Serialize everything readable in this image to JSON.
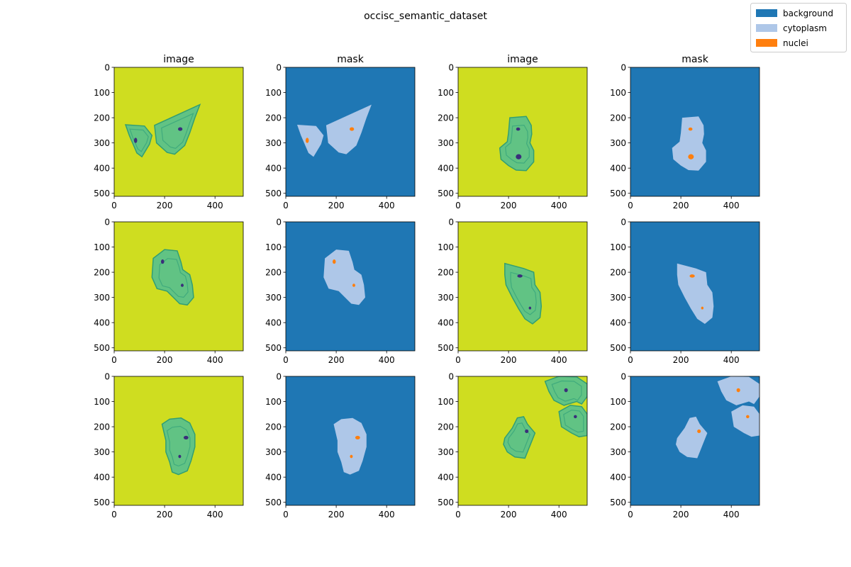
{
  "figure": {
    "title": "occisc_semantic_dataset"
  },
  "legend": {
    "placement": "top-right",
    "entries": [
      {
        "label": "background",
        "color": "#1f77b4"
      },
      {
        "label": "cytoplasm",
        "color": "#aec7e8"
      },
      {
        "label": "nuclei",
        "color": "#ff7f0e"
      }
    ]
  },
  "colors": {
    "image_bg": "#cfdd20",
    "cell_light": "#5cc28a",
    "cell_dark": "#2a9b78",
    "nucleus_image": "#3a2f7a",
    "mask_bg": "#1f77b4",
    "mask_cytoplasm": "#aec7e8",
    "mask_nuclei": "#ff7f0e"
  },
  "chart_data": {
    "type": "heatmap",
    "grid": false,
    "layout": "3 rows x 4 columns (image/mask pairs)",
    "column_titles": [
      "image",
      "mask",
      "image",
      "mask"
    ],
    "xlim": [
      0,
      512
    ],
    "ylim": [
      512,
      0
    ],
    "xticks": [
      0,
      200,
      400
    ],
    "yticks": [
      0,
      100,
      200,
      300,
      400,
      500
    ],
    "samples": [
      {
        "cells": [
          {
            "points": [
              [
                45,
                228
              ],
              [
                120,
                233
              ],
              [
                150,
                270
              ],
              [
                140,
                305
              ],
              [
                110,
                355
              ],
              [
                90,
                340
              ],
              [
                60,
                270
              ]
            ],
            "nuclei": [
              [
                85,
                290,
                8,
                13
              ]
            ]
          },
          {
            "points": [
              [
                160,
                230
              ],
              [
                340,
                148
              ],
              [
                320,
                200
              ],
              [
                300,
                260
              ],
              [
                280,
                310
              ],
              [
                240,
                345
              ],
              [
                210,
                338
              ],
              [
                168,
                300
              ]
            ],
            "nuclei": [
              [
                262,
                245,
                11,
                9
              ]
            ]
          }
        ]
      },
      {
        "cells": [
          {
            "points": [
              [
                205,
                200
              ],
              [
                270,
                195
              ],
              [
                290,
                230
              ],
              [
                292,
                265
              ],
              [
                285,
                300
              ],
              [
                300,
                330
              ],
              [
                300,
                375
              ],
              [
                270,
                410
              ],
              [
                230,
                408
              ],
              [
                200,
                390
              ],
              [
                170,
                365
              ],
              [
                165,
                320
              ],
              [
                195,
                295
              ],
              [
                200,
                260
              ]
            ],
            "nuclei": [
              [
                238,
                245,
                10,
                8
              ],
              [
                240,
                355,
                14,
                13
              ]
            ]
          }
        ]
      },
      {
        "cells": [
          {
            "points": [
              [
                155,
                145
              ],
              [
                200,
                110
              ],
              [
                250,
                115
              ],
              [
                265,
                160
              ],
              [
                272,
                190
              ],
              [
                300,
                210
              ],
              [
                310,
                250
              ],
              [
                315,
                300
              ],
              [
                290,
                330
              ],
              [
                260,
                325
              ],
              [
                235,
                300
              ],
              [
                210,
                275
              ],
              [
                170,
                265
              ],
              [
                150,
                220
              ]
            ],
            "nuclei": [
              [
                192,
                158,
                8,
                11
              ],
              [
                270,
                252,
                7,
                8
              ]
            ]
          }
        ]
      },
      {
        "cells": [
          {
            "points": [
              [
                185,
                165
              ],
              [
                260,
                185
              ],
              [
                300,
                200
              ],
              [
                305,
                250
              ],
              [
                325,
                280
              ],
              [
                330,
                335
              ],
              [
                325,
                380
              ],
              [
                295,
                405
              ],
              [
                265,
                385
              ],
              [
                240,
                345
              ],
              [
                215,
                300
              ],
              [
                190,
                250
              ],
              [
                185,
                210
              ]
            ],
            "nuclei": [
              [
                245,
                215,
                13,
                8
              ],
              [
                285,
                342,
                6,
                7
              ]
            ]
          }
        ]
      },
      {
        "cells": [
          {
            "points": [
              [
                190,
                190
              ],
              [
                220,
                170
              ],
              [
                265,
                165
              ],
              [
                300,
                185
              ],
              [
                320,
                230
              ],
              [
                320,
                280
              ],
              [
                305,
                335
              ],
              [
                290,
                375
              ],
              [
                255,
                390
              ],
              [
                230,
                380
              ],
              [
                220,
                340
              ],
              [
                205,
                300
              ],
              [
                205,
                255
              ]
            ],
            "nuclei": [
              [
                285,
                243,
                12,
                9
              ],
              [
                260,
                318,
                7,
                8
              ]
            ]
          }
        ]
      },
      {
        "cells": [
          {
            "points": [
              [
                185,
                245
              ],
              [
                215,
                205
              ],
              [
                235,
                165
              ],
              [
                260,
                160
              ],
              [
                275,
                190
              ],
              [
                305,
                225
              ],
              [
                285,
                275
              ],
              [
                265,
                325
              ],
              [
                225,
                320
              ],
              [
                195,
                300
              ],
              [
                180,
                270
              ]
            ],
            "nuclei": [
              [
                272,
                218,
                9,
                9
              ]
            ]
          },
          {
            "points": [
              [
                345,
                20
              ],
              [
                400,
                0
              ],
              [
                470,
                2
              ],
              [
                512,
                30
              ],
              [
                512,
                80
              ],
              [
                490,
                110
              ],
              [
                470,
                100
              ],
              [
                420,
                115
              ],
              [
                380,
                95
              ],
              [
                360,
                60
              ]
            ],
            "nuclei": [
              [
                428,
                55,
                9,
                10
              ]
            ]
          },
          {
            "points": [
              [
                400,
                140
              ],
              [
                445,
                115
              ],
              [
                490,
                120
              ],
              [
                512,
                150
              ],
              [
                512,
                235
              ],
              [
                480,
                240
              ],
              [
                450,
                225
              ],
              [
                410,
                200
              ]
            ],
            "nuclei": [
              [
                465,
                160,
                8,
                8
              ]
            ]
          }
        ]
      }
    ]
  }
}
